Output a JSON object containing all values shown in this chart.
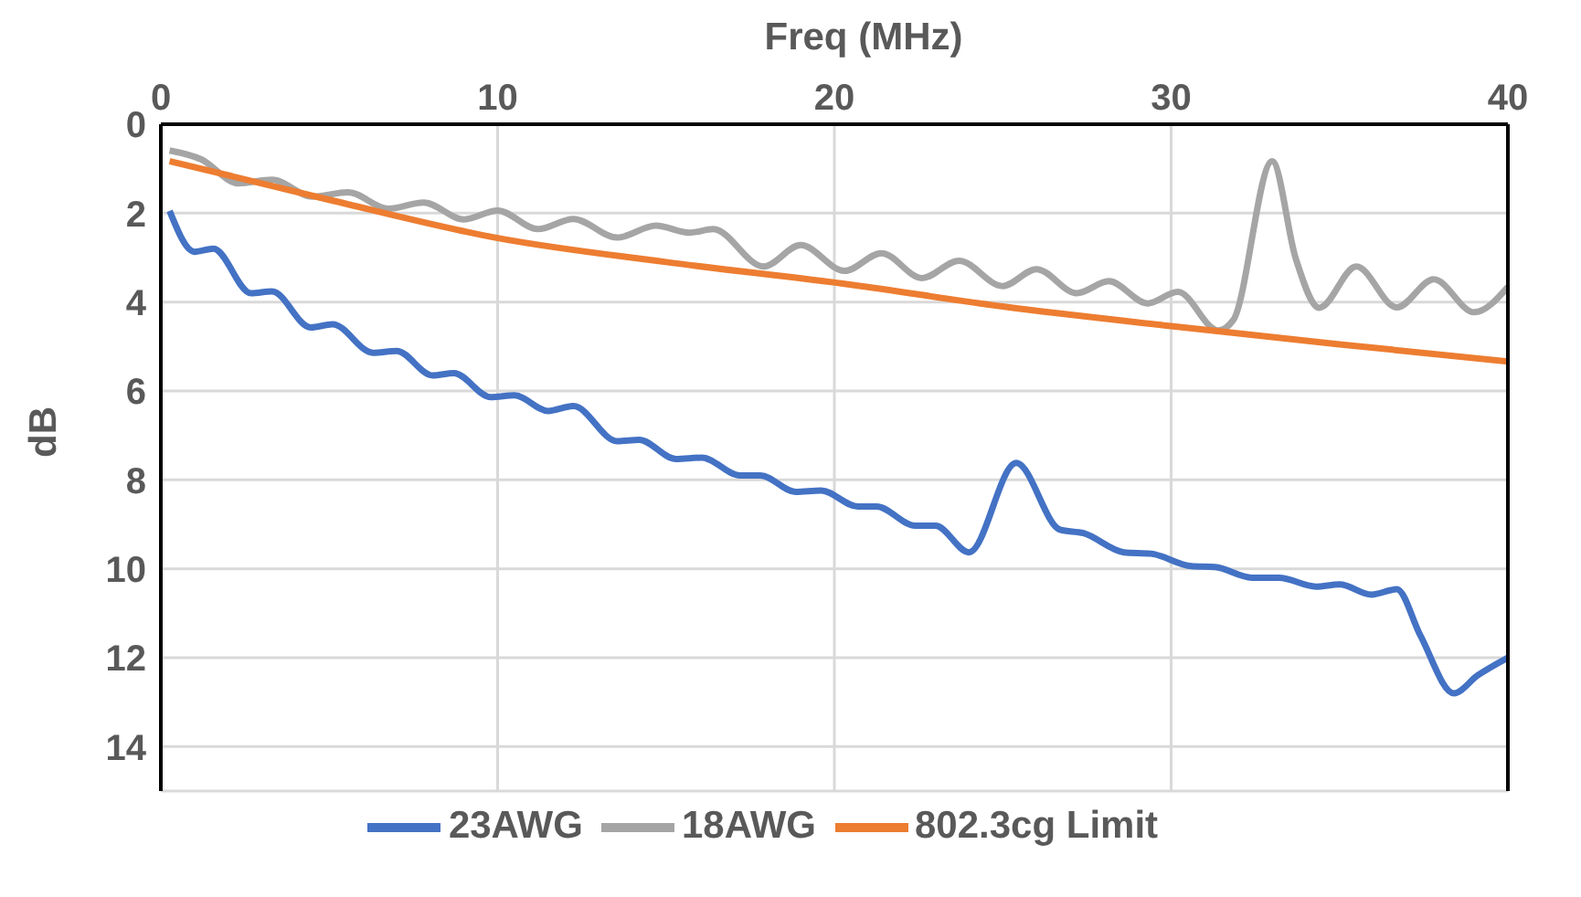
{
  "chart_data": {
    "type": "line",
    "xlabel": "Freq (MHz)",
    "ylabel": "dB",
    "xlim": [
      0,
      40
    ],
    "xticks": [
      0,
      10,
      20,
      30,
      40
    ],
    "ylim": [
      15,
      0
    ],
    "yticks": [
      0,
      2,
      4,
      6,
      8,
      10,
      12,
      14
    ],
    "grid": true,
    "legend": "bottom",
    "marker": "none",
    "line_style": "solid",
    "series": [
      {
        "name": "23AWG",
        "color": "#4472c4",
        "x": [
          0.26,
          1.0,
          1.56,
          2.68,
          3.3,
          4.45,
          5.1,
          6.3,
          7.0,
          8.07,
          8.7,
          9.8,
          10.5,
          11.5,
          12.25,
          13.55,
          14.2,
          15.3,
          16.06,
          17.2,
          17.8,
          18.85,
          19.6,
          20.7,
          21.25,
          22.4,
          23.0,
          24.0,
          25.4,
          26.7,
          27.4,
          28.6,
          29.4,
          30.6,
          31.3,
          32.4,
          33.2,
          34.3,
          35.0,
          35.95,
          36.7,
          37.4,
          38.4,
          39.1,
          40
        ],
        "values": [
          1.95,
          2.87,
          2.8,
          3.8,
          3.76,
          4.57,
          4.5,
          5.14,
          5.1,
          5.65,
          5.6,
          6.14,
          6.1,
          6.45,
          6.34,
          7.13,
          7.1,
          7.53,
          7.5,
          7.9,
          7.9,
          8.27,
          8.24,
          8.6,
          8.6,
          9.03,
          9.03,
          9.63,
          7.62,
          9.12,
          9.2,
          9.63,
          9.66,
          9.94,
          9.96,
          10.2,
          10.2,
          10.4,
          10.35,
          10.58,
          10.46,
          11.5,
          12.8,
          12.4,
          12.0
        ]
      },
      {
        "name": "18AWG",
        "color": "#a5a5a5",
        "x": [
          0.26,
          1.2,
          2.3,
          3.3,
          4.5,
          5.56,
          6.75,
          7.8,
          9.0,
          10.0,
          11.2,
          12.25,
          13.55,
          14.7,
          15.7,
          16.4,
          17.9,
          19.0,
          20.3,
          21.4,
          22.6,
          23.7,
          25.0,
          26.0,
          27.2,
          28.15,
          29.3,
          30.2,
          31.4,
          31.85,
          33.0,
          33.7,
          34.4,
          35.5,
          36.7,
          37.8,
          39.0,
          40
        ],
        "values": [
          0.59,
          0.79,
          1.33,
          1.25,
          1.63,
          1.53,
          1.9,
          1.76,
          2.14,
          1.94,
          2.36,
          2.13,
          2.55,
          2.28,
          2.44,
          2.36,
          3.2,
          2.72,
          3.3,
          2.9,
          3.46,
          3.07,
          3.64,
          3.26,
          3.8,
          3.53,
          4.03,
          3.77,
          4.64,
          4.4,
          0.83,
          3.02,
          4.13,
          3.2,
          4.12,
          3.49,
          4.23,
          3.66
        ]
      },
      {
        "name": "802.3cg Limit",
        "color": "#ed7d31",
        "x": [
          0.26,
          5,
          10,
          15,
          20.5,
          25,
          30,
          35,
          40
        ],
        "values": [
          0.83,
          1.7,
          2.56,
          3.1,
          3.61,
          4.1,
          4.54,
          4.95,
          5.34
        ]
      }
    ]
  }
}
